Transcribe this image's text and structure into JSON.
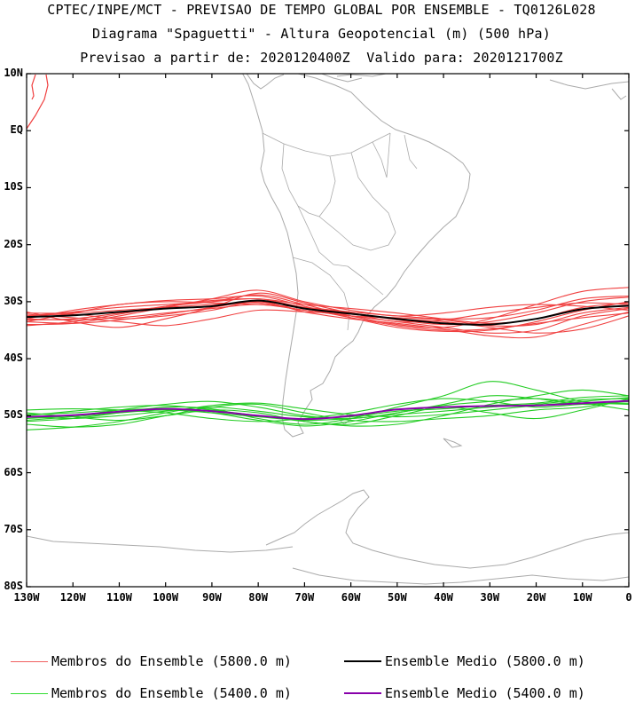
{
  "header": {
    "line1": "CPTEC/INPE/MCT - PREVISAO DE TEMPO GLOBAL POR ENSEMBLE - TQ0126L028",
    "line2": "Diagrama \"Spaguetti\" - Altura Geopotencial (m) (500 hPa)",
    "line3": "Previsao a partir de: 2020120400Z  Valido para: 2020121700Z"
  },
  "axes": {
    "lat_labels": [
      "10N",
      "EQ",
      "10S",
      "20S",
      "30S",
      "40S",
      "50S",
      "60S",
      "70S",
      "80S"
    ],
    "lat_values": [
      10,
      0,
      -10,
      -20,
      -30,
      -40,
      -50,
      -60,
      -70,
      -80
    ],
    "lon_labels": [
      "130W",
      "120W",
      "110W",
      "100W",
      "90W",
      "80W",
      "70W",
      "60W",
      "50W",
      "40W",
      "30W",
      "20W",
      "10W",
      "0"
    ],
    "lon_values": [
      -130,
      -120,
      -110,
      -100,
      -90,
      -80,
      -70,
      -60,
      -50,
      -40,
      -30,
      -20,
      -10,
      0
    ],
    "lon_range": [
      -130,
      0
    ],
    "lat_range": [
      -80,
      10
    ]
  },
  "colors": {
    "member_5800": "#f04040",
    "member_5400": "#22cc22",
    "mean_5800": "#000000",
    "mean_5400": "#8800aa",
    "coast": "#aaaaaa"
  },
  "legend": [
    {
      "label": "Membros do Ensemble (5800.0 m)",
      "color": "#f06060",
      "style": "member"
    },
    {
      "label": "Ensemble Medio (5800.0 m)",
      "color": "#000000",
      "style": "mean"
    },
    {
      "label": "Membros do Ensemble (5400.0 m)",
      "color": "#33dd33",
      "style": "member"
    },
    {
      "label": "Ensemble Medio (5400.0 m)",
      "color": "#8800aa",
      "style": "mean"
    }
  ],
  "chart_data": {
    "type": "line",
    "x_unit": "longitude (deg)",
    "y_unit": "latitude (deg)",
    "x": [
      -130,
      -120,
      -110,
      -100,
      -90,
      -80,
      -70,
      -60,
      -50,
      -40,
      -30,
      -20,
      -10,
      0
    ],
    "series_5800_mean": [
      -32.7,
      -32.4,
      -31.8,
      -31.2,
      -30.8,
      -29.8,
      -31.2,
      -32.1,
      -33.0,
      -33.8,
      -34.0,
      -33.0,
      -31.3,
      -30.7
    ],
    "series_5400_mean": [
      -50.2,
      -49.9,
      -49.3,
      -48.8,
      -49.2,
      -50.0,
      -50.6,
      -50.0,
      -48.9,
      -48.5,
      -48.3,
      -48.2,
      -47.8,
      -47.4
    ],
    "members_5800": [
      [
        -33.2,
        -33.0,
        -32.0,
        -30.8,
        -30.0,
        -28.8,
        -30.5,
        -32.5,
        -34.0,
        -34.5,
        -33.0,
        -30.5,
        -28.2,
        -27.5
      ],
      [
        -32.0,
        -32.0,
        -31.5,
        -31.0,
        -30.5,
        -30.2,
        -31.5,
        -32.5,
        -33.5,
        -34.5,
        -35.5,
        -35.0,
        -32.5,
        -31.2
      ],
      [
        -34.0,
        -33.8,
        -32.5,
        -31.0,
        -29.5,
        -28.0,
        -30.0,
        -31.5,
        -32.5,
        -32.0,
        -31.0,
        -30.5,
        -30.8,
        -31.5
      ],
      [
        -32.5,
        -32.2,
        -33.0,
        -32.5,
        -31.5,
        -30.0,
        -31.8,
        -33.0,
        -33.8,
        -34.8,
        -36.0,
        -36.2,
        -34.0,
        -31.8
      ],
      [
        -33.5,
        -32.0,
        -30.5,
        -30.0,
        -30.2,
        -30.5,
        -31.0,
        -31.8,
        -32.5,
        -33.0,
        -32.8,
        -31.5,
        -29.5,
        -29.0
      ],
      [
        -31.8,
        -33.5,
        -34.5,
        -33.0,
        -31.0,
        -28.5,
        -30.2,
        -32.0,
        -33.5,
        -33.2,
        -32.0,
        -31.0,
        -30.2,
        -30.5
      ],
      [
        -33.0,
        -31.5,
        -30.5,
        -29.8,
        -29.5,
        -29.0,
        -30.8,
        -32.8,
        -34.5,
        -35.2,
        -35.0,
        -33.5,
        -31.5,
        -30.0
      ],
      [
        -32.2,
        -32.8,
        -33.5,
        -34.2,
        -33.0,
        -31.5,
        -31.8,
        -32.2,
        -33.0,
        -33.5,
        -34.5,
        -35.5,
        -34.8,
        -32.5
      ],
      [
        -34.2,
        -33.5,
        -32.2,
        -30.8,
        -29.8,
        -29.5,
        -30.5,
        -31.2,
        -32.0,
        -33.0,
        -33.8,
        -33.0,
        -31.0,
        -30.2
      ],
      [
        -33.0,
        -33.2,
        -32.8,
        -32.0,
        -31.2,
        -30.5,
        -31.5,
        -32.5,
        -32.8,
        -33.2,
        -34.2,
        -34.0,
        -32.0,
        -31.0
      ],
      [
        -32.5,
        -31.8,
        -31.0,
        -30.5,
        -30.0,
        -29.5,
        -31.0,
        -32.0,
        -33.2,
        -34.0,
        -33.5,
        -32.0,
        -30.0,
        -29.2
      ],
      [
        -33.5,
        -33.8,
        -33.2,
        -32.2,
        -31.0,
        -30.0,
        -31.2,
        -32.8,
        -34.2,
        -35.0,
        -34.8,
        -33.8,
        -32.8,
        -32.0
      ]
    ],
    "members_5400": [
      [
        -50.5,
        -50.0,
        -49.0,
        -48.0,
        -47.5,
        -48.5,
        -50.0,
        -50.5,
        -49.5,
        -48.0,
        -46.5,
        -47.0,
        -48.0,
        -47.5
      ],
      [
        -49.5,
        -50.2,
        -50.8,
        -50.0,
        -49.0,
        -49.5,
        -51.0,
        -51.5,
        -50.0,
        -48.5,
        -49.5,
        -50.5,
        -49.0,
        -47.0
      ],
      [
        -51.0,
        -50.5,
        -49.5,
        -48.5,
        -48.8,
        -50.5,
        -51.5,
        -50.5,
        -48.5,
        -46.5,
        -44.0,
        -45.5,
        -47.5,
        -48.0
      ],
      [
        -50.0,
        -49.2,
        -48.5,
        -48.2,
        -49.0,
        -50.0,
        -51.0,
        -51.8,
        -51.5,
        -50.0,
        -48.0,
        -46.5,
        -45.5,
        -46.5
      ],
      [
        -49.0,
        -48.8,
        -49.0,
        -49.5,
        -50.5,
        -51.0,
        -50.5,
        -49.5,
        -48.0,
        -47.0,
        -47.5,
        -48.5,
        -48.0,
        -47.8
      ],
      [
        -51.5,
        -52.0,
        -51.5,
        -50.0,
        -48.5,
        -48.0,
        -49.5,
        -50.8,
        -51.0,
        -50.5,
        -50.0,
        -49.0,
        -48.5,
        -47.2
      ],
      [
        -50.2,
        -50.5,
        -50.0,
        -49.2,
        -48.5,
        -49.2,
        -50.2,
        -50.2,
        -49.2,
        -48.8,
        -48.2,
        -47.8,
        -46.8,
        -46.5
      ],
      [
        -49.8,
        -49.5,
        -49.0,
        -48.8,
        -49.5,
        -50.8,
        -51.8,
        -51.0,
        -49.5,
        -48.2,
        -47.5,
        -47.0,
        -47.8,
        -49.0
      ],
      [
        -52.5,
        -52.0,
        -51.0,
        -49.5,
        -48.2,
        -47.8,
        -48.8,
        -49.8,
        -50.2,
        -49.8,
        -49.0,
        -48.2,
        -47.5,
        -46.8
      ],
      [
        -50.8,
        -50.2,
        -49.5,
        -49.0,
        -49.5,
        -50.2,
        -50.8,
        -50.5,
        -49.8,
        -49.2,
        -48.5,
        -48.0,
        -47.2,
        -47.0
      ]
    ]
  }
}
